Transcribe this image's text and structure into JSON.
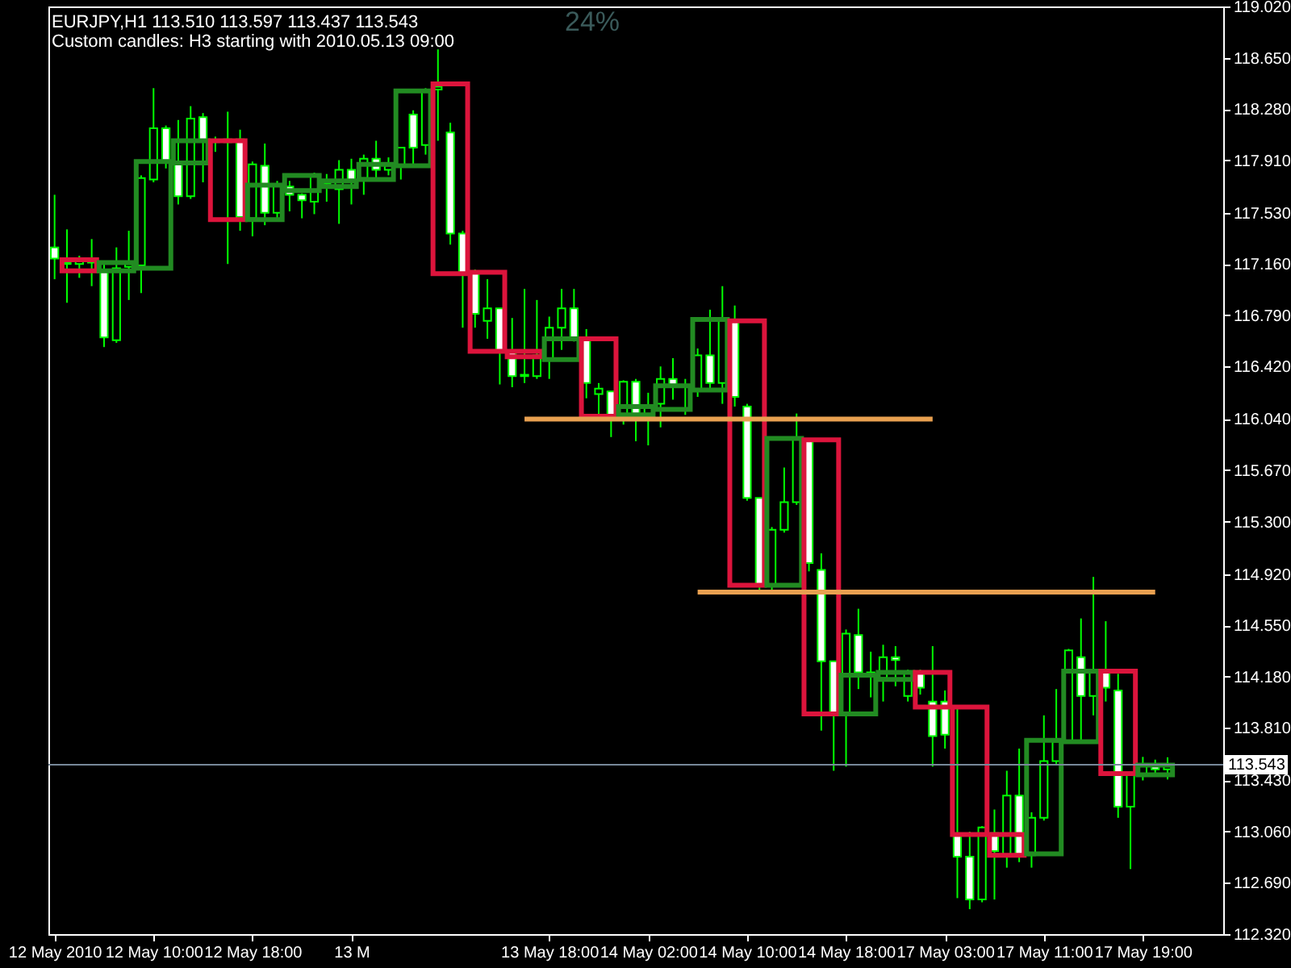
{
  "chart_data": {
    "type": "candlestick",
    "title": "EURJPY,H1  113.510 113.597 113.437 113.543",
    "subtitle": "Custom candles: H3 starting with 2010.05.13 09:00",
    "annotations": [
      "24%"
    ],
    "categories": [
      "12 May 2010",
      null,
      null,
      null,
      null,
      null,
      null,
      null,
      "12 May 10:00",
      null,
      null,
      null,
      null,
      null,
      null,
      null,
      "12 May 18:00",
      null,
      null,
      null,
      null,
      null,
      null,
      null,
      "13 M",
      null,
      null,
      null,
      null,
      null,
      null,
      null,
      null,
      null,
      null,
      null,
      null,
      null,
      null,
      null,
      "13 May 18:00",
      null,
      null,
      null,
      null,
      null,
      null,
      null,
      "14 May 02:00",
      null,
      null,
      null,
      null,
      null,
      null,
      null,
      "14 May 10:00",
      null,
      null,
      null,
      null,
      null,
      null,
      null,
      "14 May 18:00",
      null,
      null,
      null,
      null,
      null,
      null,
      null,
      "17 May 03:00",
      null,
      null,
      null,
      null,
      null,
      null,
      null,
      "17 May 11:00",
      null,
      null,
      null,
      null,
      null,
      null,
      null,
      "17 May 19:00",
      null,
      null,
      null,
      null,
      null,
      null
    ],
    "ylim": [
      112.32,
      119.02
    ],
    "yticks": [
      {
        "value": 112.32,
        "label": "112.320"
      },
      {
        "value": 112.69,
        "label": "112.690"
      },
      {
        "value": 113.06,
        "label": "113.060"
      },
      {
        "value": 113.43,
        "label": "113.430"
      },
      {
        "value": 113.81,
        "label": "113.810"
      },
      {
        "value": 114.18,
        "label": "114.180"
      },
      {
        "value": 114.55,
        "label": "114.550"
      },
      {
        "value": 114.92,
        "label": "114.920"
      },
      {
        "value": 115.3,
        "label": "115.300"
      },
      {
        "value": 115.67,
        "label": "115.670"
      },
      {
        "value": 116.04,
        "label": "116.040"
      },
      {
        "value": 116.42,
        "label": "116.420"
      },
      {
        "value": 116.79,
        "label": "116.790"
      },
      {
        "value": 117.16,
        "label": "117.160"
      },
      {
        "value": 117.53,
        "label": "117.530"
      },
      {
        "value": 117.91,
        "label": "117.910"
      },
      {
        "value": 118.28,
        "label": "118.280"
      },
      {
        "value": 118.65,
        "label": "118.650"
      },
      {
        "value": 119.02,
        "label": "119.020"
      }
    ],
    "grid": false,
    "ref_lines": [
      {
        "axis": "y",
        "value": 113.543,
        "label": "113.543",
        "color": "#778899"
      }
    ],
    "series": [
      {
        "type": "candlestick",
        "color": "#00ff00",
        "ohlc": [
          [
            117.28,
            117.66,
            117.05,
            117.2
          ],
          [
            117.17,
            117.41,
            116.88,
            117.16
          ],
          [
            117.16,
            117.22,
            117.06,
            117.18
          ],
          [
            117.18,
            117.34,
            117.0,
            117.17
          ],
          [
            117.12,
            117.17,
            116.56,
            116.63
          ],
          [
            116.61,
            117.28,
            116.59,
            117.13
          ],
          [
            117.14,
            117.4,
            116.9,
            117.16
          ],
          [
            117.15,
            117.8,
            116.95,
            117.78
          ],
          [
            117.77,
            118.43,
            117.75,
            118.14
          ],
          [
            118.14,
            118.16,
            117.85,
            117.9
          ],
          [
            117.9,
            118.2,
            117.59,
            117.65
          ],
          [
            117.65,
            118.3,
            117.63,
            118.21
          ],
          [
            118.22,
            118.25,
            117.75,
            118.05
          ],
          [
            118.05,
            118.08,
            117.97,
            118.04
          ],
          [
            118.04,
            118.26,
            117.16,
            118.06
          ],
          [
            118.06,
            118.13,
            117.4,
            117.5
          ],
          [
            117.49,
            117.9,
            117.36,
            117.88
          ],
          [
            117.87,
            118.03,
            117.44,
            117.53
          ],
          [
            117.53,
            117.76,
            117.48,
            117.73
          ],
          [
            117.72,
            117.76,
            117.54,
            117.66
          ],
          [
            117.66,
            117.67,
            117.49,
            117.62
          ],
          [
            117.61,
            117.82,
            117.52,
            117.8
          ],
          [
            117.74,
            117.81,
            117.61,
            117.75
          ],
          [
            117.7,
            117.91,
            117.45,
            117.84
          ],
          [
            117.84,
            117.92,
            117.59,
            117.76
          ],
          [
            117.78,
            117.95,
            117.66,
            117.92
          ],
          [
            117.92,
            118.05,
            117.76,
            117.84
          ],
          [
            117.84,
            117.93,
            117.8,
            117.87
          ],
          [
            117.87,
            118.0,
            117.77,
            118.0
          ],
          [
            118.24,
            118.27,
            117.87,
            118.0
          ],
          [
            118.02,
            118.43,
            117.95,
            118.42
          ],
          [
            118.42,
            118.71,
            118.05,
            118.44
          ],
          [
            118.11,
            118.18,
            117.3,
            117.38
          ],
          [
            117.38,
            117.4,
            116.7,
            117.09
          ],
          [
            117.1,
            117.12,
            116.7,
            116.8
          ],
          [
            116.75,
            117.05,
            116.62,
            116.84
          ],
          [
            116.84,
            116.84,
            116.29,
            116.53
          ],
          [
            116.53,
            116.77,
            116.27,
            116.35
          ],
          [
            116.36,
            116.98,
            116.3,
            116.35
          ],
          [
            116.35,
            116.9,
            116.33,
            116.5
          ],
          [
            116.47,
            116.78,
            116.33,
            116.7
          ],
          [
            116.7,
            116.98,
            116.54,
            116.84
          ],
          [
            116.84,
            116.98,
            116.6,
            116.62
          ],
          [
            116.62,
            116.69,
            116.19,
            116.3
          ],
          [
            116.22,
            116.3,
            116.06,
            116.26
          ],
          [
            116.24,
            116.24,
            115.91,
            116.06
          ],
          [
            116.06,
            116.32,
            116.0,
            116.31
          ],
          [
            116.31,
            116.33,
            115.88,
            116.04
          ],
          [
            116.05,
            116.23,
            115.85,
            116.13
          ],
          [
            116.15,
            116.42,
            115.98,
            116.33
          ],
          [
            116.33,
            116.48,
            116.18,
            116.27
          ],
          [
            116.27,
            116.33,
            116.07,
            116.28
          ],
          [
            116.25,
            116.55,
            116.2,
            116.5
          ],
          [
            116.5,
            116.83,
            116.25,
            116.3
          ],
          [
            116.3,
            117.0,
            116.15,
            116.76
          ],
          [
            116.75,
            116.86,
            116.13,
            116.2
          ],
          [
            116.13,
            116.15,
            115.45,
            115.47
          ],
          [
            115.47,
            115.47,
            114.78,
            114.84
          ],
          [
            114.84,
            115.26,
            114.8,
            115.24
          ],
          [
            115.24,
            115.69,
            115.22,
            115.44
          ],
          [
            115.44,
            116.08,
            115.42,
            115.9
          ],
          [
            115.89,
            115.9,
            114.94,
            115.0
          ],
          [
            114.95,
            115.07,
            113.79,
            114.29
          ],
          [
            114.29,
            114.29,
            113.5,
            113.91
          ],
          [
            113.91,
            114.52,
            113.53,
            114.49
          ],
          [
            114.48,
            114.67,
            114.09,
            114.21
          ],
          [
            114.21,
            114.36,
            114.03,
            114.19
          ],
          [
            114.17,
            114.41,
            114.0,
            114.32
          ],
          [
            114.32,
            114.4,
            114.11,
            114.3
          ],
          [
            114.04,
            114.23,
            114.0,
            114.22
          ],
          [
            114.21,
            114.23,
            114.05,
            114.1
          ],
          [
            114.0,
            114.4,
            113.53,
            113.75
          ],
          [
            114.0,
            114.08,
            113.66,
            113.76
          ],
          [
            113.04,
            113.97,
            112.58,
            112.88
          ],
          [
            112.88,
            113.06,
            112.5,
            112.57
          ],
          [
            112.57,
            113.1,
            112.55,
            113.09
          ],
          [
            113.05,
            113.22,
            112.57,
            112.92
          ],
          [
            112.89,
            113.5,
            112.8,
            113.32
          ],
          [
            113.32,
            113.66,
            112.84,
            112.89
          ],
          [
            112.89,
            113.2,
            112.8,
            113.16
          ],
          [
            113.16,
            113.9,
            113.14,
            113.57
          ],
          [
            113.57,
            114.09,
            113.55,
            113.71
          ],
          [
            113.71,
            114.38,
            113.7,
            114.37
          ],
          [
            114.32,
            114.6,
            113.72,
            114.04
          ],
          [
            114.04,
            114.9,
            113.9,
            114.22
          ],
          [
            114.22,
            114.58,
            114.0,
            114.1
          ],
          [
            114.08,
            114.2,
            113.16,
            113.24
          ],
          [
            113.24,
            113.47,
            112.79,
            113.47
          ],
          [
            113.48,
            113.6,
            113.43,
            113.55
          ],
          [
            113.55,
            113.58,
            113.48,
            113.51
          ],
          [
            113.51,
            113.597,
            113.437,
            113.543
          ],
          null,
          null,
          null,
          null
        ]
      },
      {
        "type": "candlestick",
        "ohlc": [
          null,
          null,
          [
            117.19,
            117.19,
            117.11,
            117.11
          ],
          null,
          null,
          [
            117.11,
            117.17,
            117.11,
            117.17
          ],
          null,
          null,
          [
            117.13,
            117.9,
            117.13,
            117.9
          ],
          null,
          null,
          [
            117.89,
            118.05,
            117.89,
            118.05
          ],
          null,
          null,
          [
            118.05,
            118.05,
            117.48,
            117.48
          ],
          null,
          null,
          [
            117.48,
            117.73,
            117.48,
            117.73
          ],
          null,
          null,
          [
            117.69,
            117.8,
            117.69,
            117.8
          ],
          null,
          null,
          [
            117.72,
            117.76,
            117.72,
            117.76
          ],
          null,
          null,
          [
            117.77,
            117.88,
            117.77,
            117.88
          ],
          null,
          null,
          [
            117.87,
            118.41,
            117.87,
            118.41
          ],
          null,
          null,
          [
            118.46,
            118.46,
            117.09,
            117.09
          ],
          null,
          null,
          [
            117.1,
            117.1,
            116.53,
            116.53
          ],
          null,
          null,
          [
            116.53,
            116.53,
            116.49,
            116.49
          ],
          null,
          null,
          [
            116.47,
            116.62,
            116.47,
            116.62
          ],
          null,
          null,
          [
            116.62,
            116.62,
            116.06,
            116.06
          ],
          null,
          null,
          [
            116.07,
            116.13,
            116.07,
            116.13
          ],
          null,
          null,
          [
            116.11,
            116.28,
            116.11,
            116.28
          ],
          null,
          null,
          [
            116.25,
            116.76,
            116.25,
            116.76
          ],
          null,
          null,
          [
            116.75,
            116.75,
            114.84,
            114.84
          ],
          null,
          null,
          [
            114.84,
            115.9,
            114.84,
            115.9
          ],
          null,
          null,
          [
            115.89,
            115.89,
            113.91,
            113.91
          ],
          null,
          null,
          [
            113.91,
            114.19,
            113.91,
            114.19
          ],
          null,
          null,
          [
            114.16,
            114.21,
            114.16,
            114.21
          ],
          null,
          null,
          [
            114.21,
            114.21,
            113.96,
            113.96
          ],
          null,
          null,
          [
            113.96,
            113.96,
            113.04,
            113.04
          ],
          null,
          null,
          [
            113.04,
            113.04,
            112.89,
            112.89
          ],
          null,
          null,
          [
            112.9,
            113.72,
            112.9,
            113.72
          ],
          null,
          null,
          [
            113.71,
            114.22,
            113.71,
            114.22
          ],
          null,
          null,
          [
            114.22,
            114.22,
            113.48,
            113.48
          ],
          null,
          null,
          [
            113.47,
            113.54,
            113.47,
            113.54
          ],
          null,
          null,
          null,
          null,
          null
        ],
        "colors": [
          null,
          null,
          "#dc143c",
          null,
          null,
          "#228b22",
          null,
          null,
          "#228b22",
          null,
          null,
          "#228b22",
          null,
          null,
          "#dc143c",
          null,
          null,
          "#228b22",
          null,
          null,
          "#228b22",
          null,
          null,
          "#228b22",
          null,
          null,
          "#228b22",
          null,
          null,
          "#228b22",
          null,
          null,
          "#dc143c",
          null,
          null,
          "#dc143c",
          null,
          null,
          "#dc143c",
          null,
          null,
          "#228b22",
          null,
          null,
          "#dc143c",
          null,
          null,
          "#228b22",
          null,
          null,
          "#228b22",
          null,
          null,
          "#228b22",
          null,
          null,
          "#dc143c",
          null,
          null,
          "#228b22",
          null,
          null,
          "#dc143c",
          null,
          null,
          "#228b22",
          null,
          null,
          "#228b22",
          null,
          null,
          "#dc143c",
          null,
          null,
          "#dc143c",
          null,
          null,
          "#dc143c",
          null,
          null,
          "#228b22",
          null,
          null,
          "#228b22",
          null,
          null,
          "#dc143c",
          null,
          null,
          "#228b22",
          null,
          null,
          null,
          null,
          null
        ]
      },
      {
        "type": "line",
        "color": "#e8a050",
        "values": [
          null,
          null,
          null,
          null,
          null,
          null,
          null,
          null,
          null,
          null,
          null,
          null,
          null,
          null,
          null,
          null,
          null,
          null,
          null,
          null,
          null,
          null,
          null,
          null,
          null,
          null,
          null,
          null,
          null,
          null,
          null,
          null,
          null,
          null,
          null,
          null,
          null,
          null,
          116.04,
          116.04,
          116.04,
          116.04,
          116.04,
          116.04,
          116.04,
          116.04,
          116.04,
          116.04,
          116.04,
          116.04,
          116.04,
          116.04,
          116.04,
          116.04,
          116.04,
          116.04,
          116.04,
          116.04,
          116.04,
          116.04,
          116.04,
          116.04,
          116.04,
          116.04,
          116.04,
          116.04,
          116.04,
          116.04,
          116.04,
          116.04,
          116.04,
          116.04,
          null,
          null,
          null,
          null,
          null,
          null,
          null,
          null,
          null,
          null,
          null,
          null,
          null,
          null,
          null,
          null,
          null,
          null,
          null,
          null,
          null,
          null,
          null
        ],
        "line_style": "solid",
        "marker": "none"
      },
      {
        "type": "line",
        "color": "#e8a050",
        "values": [
          null,
          null,
          null,
          null,
          null,
          null,
          null,
          null,
          null,
          null,
          null,
          null,
          null,
          null,
          null,
          null,
          null,
          null,
          null,
          null,
          null,
          null,
          null,
          null,
          null,
          null,
          null,
          null,
          null,
          null,
          null,
          null,
          null,
          null,
          null,
          null,
          null,
          null,
          null,
          null,
          null,
          null,
          null,
          null,
          null,
          null,
          null,
          null,
          null,
          null,
          null,
          null,
          114.79,
          114.79,
          114.79,
          114.79,
          114.79,
          114.79,
          114.79,
          114.79,
          114.79,
          114.79,
          114.79,
          114.79,
          114.79,
          114.79,
          114.79,
          114.79,
          114.79,
          114.79,
          114.79,
          114.79,
          114.79,
          114.79,
          114.79,
          114.79,
          114.79,
          114.79,
          114.79,
          114.79,
          114.79,
          114.79,
          114.79,
          114.79,
          114.79,
          114.79,
          114.79,
          114.79,
          114.79,
          114.79,
          null,
          null,
          null,
          null,
          null
        ],
        "line_style": "solid",
        "marker": "none"
      }
    ]
  }
}
